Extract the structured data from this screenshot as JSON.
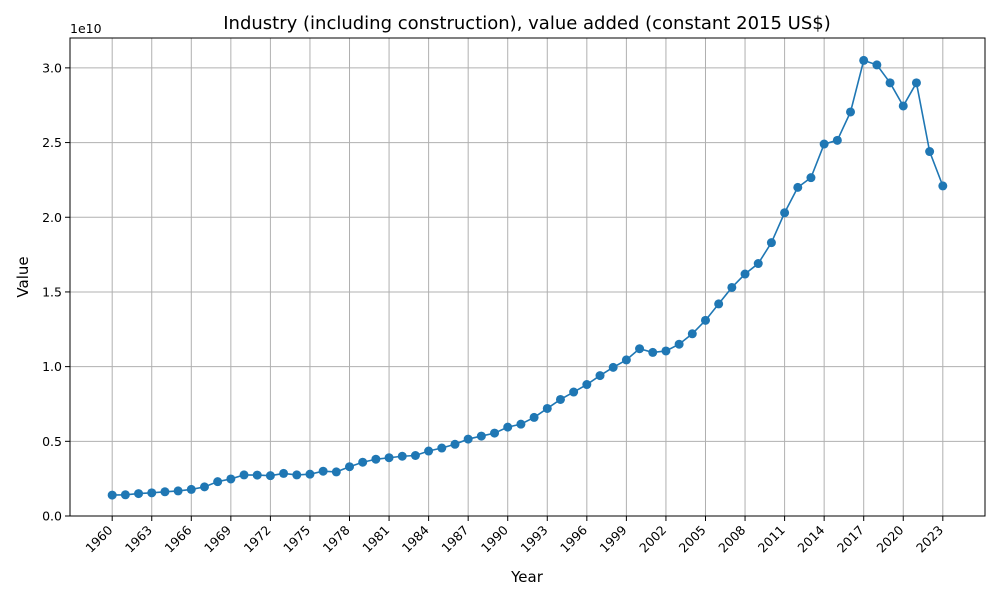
{
  "chart_data": {
    "type": "line",
    "title": "Industry (including construction), value added (constant 2015 US$)",
    "xlabel": "Year",
    "ylabel": "Value",
    "y_offset_label": "1e10",
    "xlim": [
      1956.8,
      2026.2
    ],
    "ylim": [
      0,
      32000000000.0
    ],
    "grid": true,
    "x_ticks": [
      1960,
      1963,
      1966,
      1969,
      1972,
      1975,
      1978,
      1981,
      1984,
      1987,
      1990,
      1993,
      1996,
      1999,
      2002,
      2005,
      2008,
      2011,
      2014,
      2017,
      2020,
      2023
    ],
    "y_ticks": [
      0,
      5000000000.0,
      10000000000.0,
      15000000000.0,
      20000000000.0,
      25000000000.0,
      30000000000.0
    ],
    "y_tick_labels": [
      "0.0",
      "0.5",
      "1.0",
      "1.5",
      "2.0",
      "2.5",
      "3.0"
    ],
    "line_color": "#1f77b4",
    "marker": "circle",
    "x": [
      1960,
      1961,
      1962,
      1963,
      1964,
      1965,
      1966,
      1967,
      1968,
      1969,
      1970,
      1971,
      1972,
      1973,
      1974,
      1975,
      1976,
      1977,
      1978,
      1979,
      1980,
      1981,
      1982,
      1983,
      1984,
      1985,
      1986,
      1987,
      1988,
      1989,
      1990,
      1991,
      1992,
      1993,
      1994,
      1995,
      1996,
      1997,
      1998,
      1999,
      2000,
      2001,
      2002,
      2003,
      2004,
      2005,
      2006,
      2007,
      2008,
      2009,
      2010,
      2011,
      2012,
      2013,
      2014,
      2015,
      2016,
      2017,
      2018,
      2019,
      2020,
      2021,
      2022,
      2023
    ],
    "y": [
      1400000000.0,
      1420000000.0,
      1500000000.0,
      1550000000.0,
      1620000000.0,
      1680000000.0,
      1780000000.0,
      1950000000.0,
      2300000000.0,
      2480000000.0,
      2750000000.0,
      2740000000.0,
      2700000000.0,
      2850000000.0,
      2750000000.0,
      2800000000.0,
      3000000000.0,
      2950000000.0,
      3300000000.0,
      3600000000.0,
      3800000000.0,
      3900000000.0,
      4000000000.0,
      4050000000.0,
      4350000000.0,
      4550000000.0,
      4800000000.0,
      5150000000.0,
      5350000000.0,
      5550000000.0,
      5950000000.0,
      6150000000.0,
      6600000000.0,
      7200000000.0,
      7800000000.0,
      8300000000.0,
      8800000000.0,
      9400000000.0,
      9950000000.0,
      10450000000.0,
      11200000000.0,
      10950000000.0,
      11050000000.0,
      11500000000.0,
      12200000000.0,
      13100000000.0,
      14200000000.0,
      15300000000.0,
      16200000000.0,
      16900000000.0,
      18300000000.0,
      20300000000.0,
      22000000000.0,
      22650000000.0,
      24900000000.0,
      25150000000.0,
      27050000000.0,
      30500000000.0,
      30200000000.0,
      29000000000.0,
      27450000000.0,
      29000000000.0,
      24400000000.0,
      22100000000.0
    ]
  }
}
